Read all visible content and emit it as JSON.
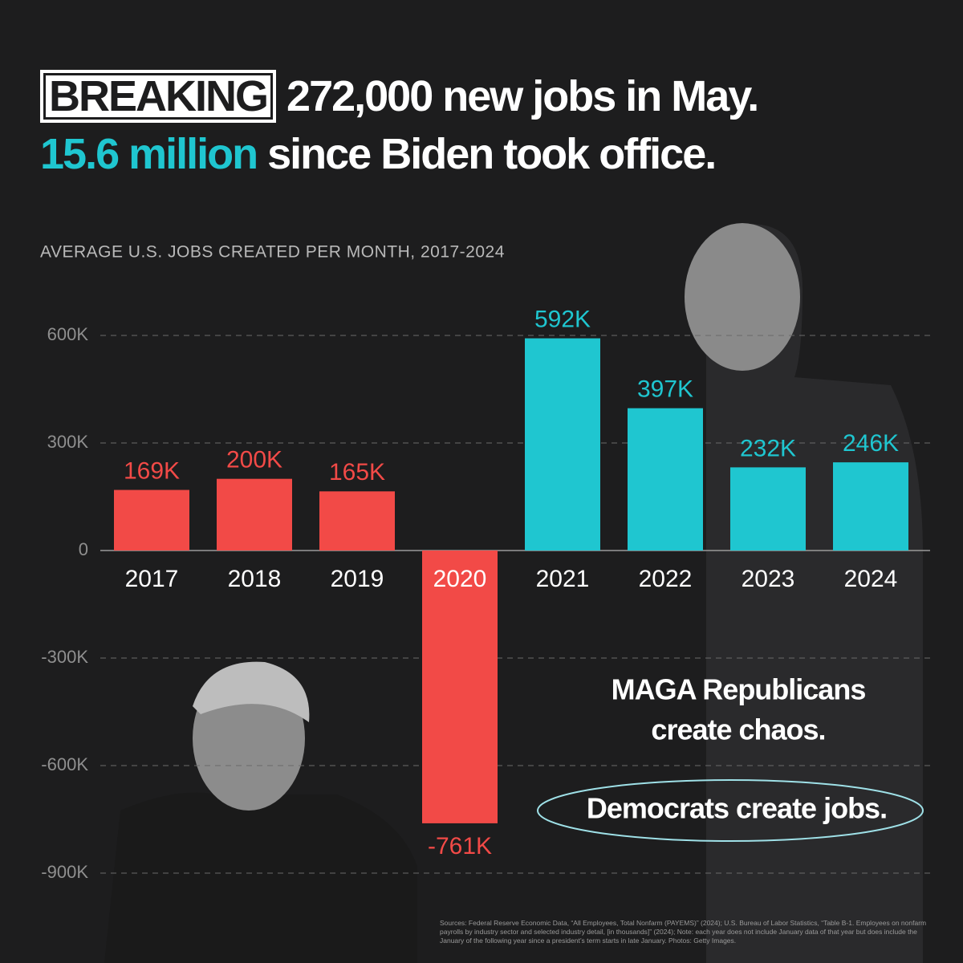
{
  "chart_data": {
    "type": "bar",
    "headline": {
      "tag": "BREAKING",
      "line1": "272,000 new jobs in May.",
      "highlight": "15.6 million",
      "line2": "since Biden took office."
    },
    "title": "AVERAGE U.S. JOBS CREATED PER MONTH, 2017-2024",
    "categories": [
      "2017",
      "2018",
      "2019",
      "2020",
      "2021",
      "2022",
      "2023",
      "2024"
    ],
    "values": [
      169000,
      200000,
      165000,
      -761000,
      592000,
      397000,
      232000,
      246000
    ],
    "value_labels": [
      "169K",
      "200K",
      "165K",
      "-761K",
      "592K",
      "397K",
      "232K",
      "246K"
    ],
    "colors": [
      "#f24a47",
      "#f24a47",
      "#f24a47",
      "#f24a47",
      "#1fc6d0",
      "#1fc6d0",
      "#1fc6d0",
      "#1fc6d0"
    ],
    "ylim": [
      -900000,
      600000
    ],
    "yticks": [
      {
        "value": 600000,
        "label": "600K"
      },
      {
        "value": 300000,
        "label": "300K"
      },
      {
        "value": 0,
        "label": "0"
      },
      {
        "value": -300000,
        "label": "-300K"
      },
      {
        "value": -600000,
        "label": "-600K"
      },
      {
        "value": -900000,
        "label": "-900K"
      }
    ],
    "grid": true,
    "annotations": [
      "MAGA Republicans",
      "create chaos.",
      "Democrats create jobs."
    ],
    "source": "Sources: Federal Reserve Economic Data, “All Employees, Total Nonfarm (PAYEMS)” (2024); U.S. Bureau of Labor Statistics, “Table B-1. Employees on nonfarm payrolls by industry sector and selected industry detail, [in thousands]” (2024); Note: each year does not include January data of that year but does include the January of the following year since a president’s term starts in late January. Photos: Getty Images."
  }
}
